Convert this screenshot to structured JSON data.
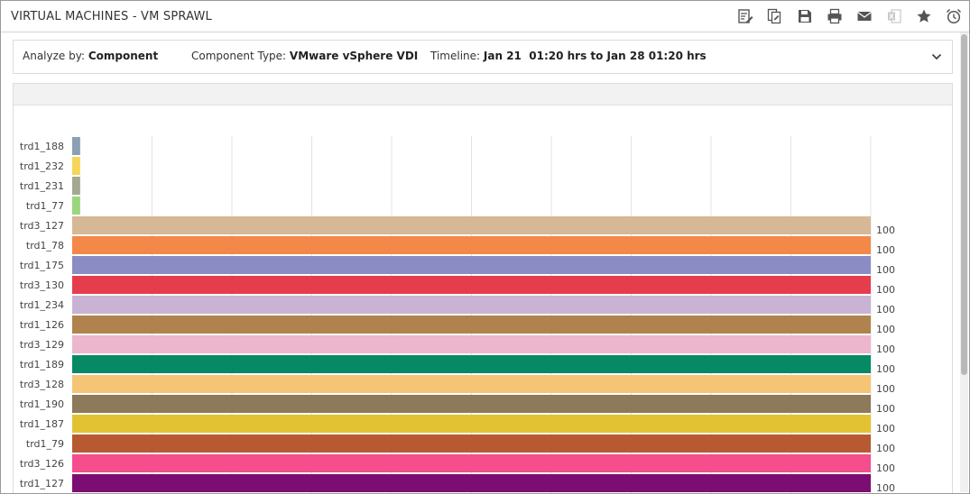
{
  "window": {
    "title": "VIRTUAL MACHINES - VM SPRAWL"
  },
  "toolbar": [
    {
      "name": "edit-report-icon",
      "label": "Edit report"
    },
    {
      "name": "copy-report-icon",
      "label": "Copy report"
    },
    {
      "name": "save-icon",
      "label": "Save"
    },
    {
      "name": "print-icon",
      "label": "Print"
    },
    {
      "name": "mail-icon",
      "label": "Email"
    },
    {
      "name": "excel-export-icon",
      "label": "Export to Excel"
    },
    {
      "name": "favorite-star-icon",
      "label": "Add to favorites"
    },
    {
      "name": "schedule-alarm-icon",
      "label": "Schedule"
    }
  ],
  "filters": {
    "analyze_label": "Analyze by:",
    "analyze_value": "Component",
    "component_type_label": "Component Type:",
    "component_type_value": "VMware vSphere VDI",
    "timeline_label": "Timeline:",
    "timeline_value": "Jan 21  01:20 hrs to Jan 28 01:20 hrs"
  },
  "chart_data": {
    "type": "bar",
    "orientation": "horizontal",
    "xlim": [
      0,
      100
    ],
    "grid": true,
    "categories": [
      "trd1_188",
      "trd1_232",
      "trd1_231",
      "trd1_77",
      "trd3_127",
      "trd1_78",
      "trd1_175",
      "trd3_130",
      "trd1_234",
      "trd1_126",
      "trd3_129",
      "trd1_189",
      "trd3_128",
      "trd1_190",
      "trd1_187",
      "trd1_79",
      "trd3_126",
      "trd1_127"
    ],
    "values": [
      1,
      1,
      1,
      1,
      100,
      100,
      100,
      100,
      100,
      100,
      100,
      100,
      100,
      100,
      100,
      100,
      100,
      100
    ],
    "value_labels": [
      "",
      "",
      "",
      "",
      "100",
      "100",
      "100",
      "100",
      "100",
      "100",
      "100",
      "100",
      "100",
      "100",
      "100",
      "100",
      "100",
      "100"
    ],
    "colors": [
      "#8aa0b4",
      "#f5d55a",
      "#a3a891",
      "#9ad67b",
      "#d6b896",
      "#f48848",
      "#8c8cc4",
      "#e63d4e",
      "#c8b3d4",
      "#b0834e",
      "#ecb6cc",
      "#068a66",
      "#f5c477",
      "#8c7a5a",
      "#e2c232",
      "#b75a31",
      "#f44e8c",
      "#7c0d72"
    ]
  }
}
